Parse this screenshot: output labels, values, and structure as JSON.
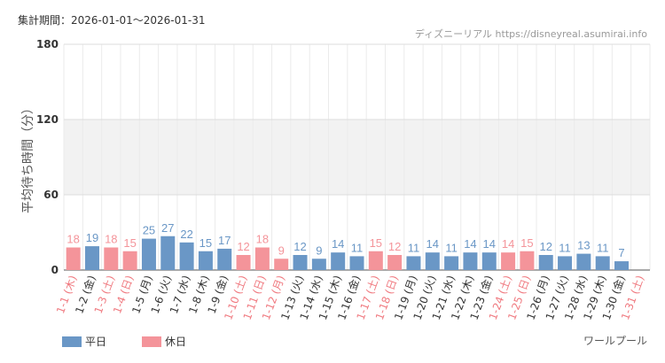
{
  "chart_data": {
    "type": "bar",
    "title": "集計期間：2026-01-01～2026-01-31",
    "source": "ディズニーリアル https://disneyreal.asumirai.info",
    "ylabel": "平均待ち時間（分）",
    "attraction": "ワールプール",
    "categories": [
      "1-1 (木)",
      "1-2 (金)",
      "1-3 (土)",
      "1-4 (日)",
      "1-5 (月)",
      "1-6 (火)",
      "1-7 (水)",
      "1-8 (木)",
      "1-9 (金)",
      "1-10 (土)",
      "1-11 (日)",
      "1-12 (月)",
      "1-13 (火)",
      "1-14 (水)",
      "1-15 (木)",
      "1-16 (金)",
      "1-17 (土)",
      "1-18 (日)",
      "1-19 (月)",
      "1-20 (火)",
      "1-21 (水)",
      "1-22 (木)",
      "1-23 (金)",
      "1-24 (土)",
      "1-25 (日)",
      "1-26 (月)",
      "1-27 (火)",
      "1-28 (水)",
      "1-29 (木)",
      "1-30 (金)",
      "1-31 (土)"
    ],
    "series": [
      {
        "name": "平日",
        "color": "#6a97c6",
        "values": [
          null,
          19,
          null,
          null,
          25,
          27,
          22,
          15,
          17,
          null,
          null,
          null,
          12,
          9,
          14,
          11,
          null,
          null,
          11,
          14,
          11,
          14,
          14,
          null,
          null,
          12,
          11,
          13,
          11,
          7,
          null
        ]
      },
      {
        "name": "休日",
        "color": "#f4949a",
        "values": [
          18,
          null,
          18,
          15,
          null,
          null,
          null,
          null,
          null,
          12,
          18,
          9,
          null,
          null,
          null,
          null,
          15,
          12,
          null,
          null,
          null,
          null,
          null,
          14,
          15,
          null,
          null,
          null,
          null,
          null,
          null
        ]
      }
    ],
    "ylim": [
      0,
      180
    ],
    "yticks": [
      0,
      60,
      120,
      180
    ],
    "grid": true
  }
}
